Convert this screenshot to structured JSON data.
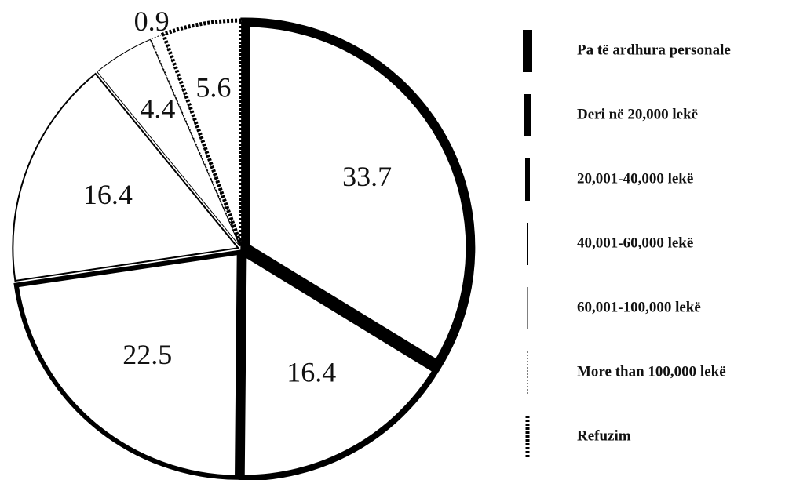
{
  "chart_data": {
    "type": "pie",
    "categories": [
      "Pa të ardhura personale",
      "Deri në 20,000 lekë",
      "20,001-40,000 lekë",
      "40,001-60,000 lekë",
      "60,001-100,000 lekë",
      "More than 100,000 lekë",
      "Refuzim"
    ],
    "values": [
      33.7,
      16.4,
      22.5,
      16.4,
      4.4,
      0.9,
      5.6
    ],
    "color": "#000000",
    "legend": "right"
  }
}
